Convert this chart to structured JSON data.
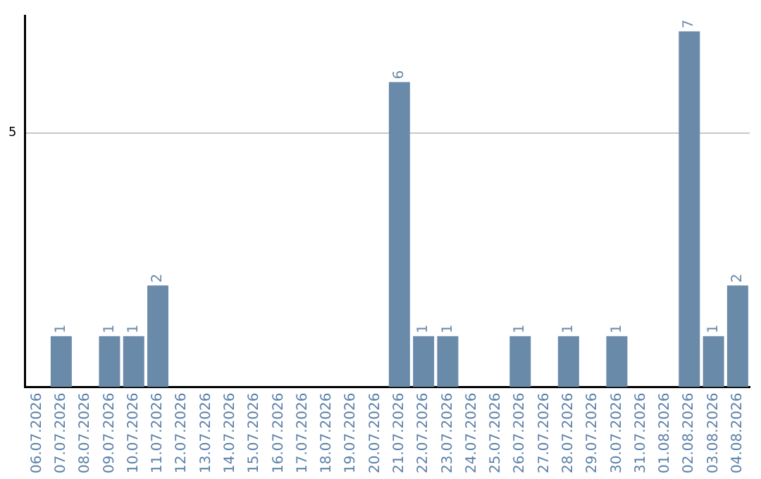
{
  "chart_data": {
    "type": "bar",
    "categories": [
      "06.07.2026",
      "07.07.2026",
      "08.07.2026",
      "09.07.2026",
      "10.07.2026",
      "11.07.2026",
      "12.07.2026",
      "13.07.2026",
      "14.07.2026",
      "15.07.2026",
      "16.07.2026",
      "17.07.2026",
      "18.07.2026",
      "19.07.2026",
      "20.07.2026",
      "21.07.2026",
      "22.07.2026",
      "23.07.2026",
      "24.07.2026",
      "25.07.2026",
      "26.07.2026",
      "27.07.2026",
      "28.07.2026",
      "29.07.2026",
      "30.07.2026",
      "31.07.2026",
      "01.08.2026",
      "02.08.2026",
      "03.08.2026",
      "04.08.2026"
    ],
    "values": [
      0,
      1,
      0,
      1,
      1,
      2,
      0,
      0,
      0,
      0,
      0,
      0,
      0,
      0,
      0,
      6,
      1,
      1,
      0,
      0,
      1,
      0,
      1,
      0,
      1,
      0,
      0,
      7,
      1,
      2
    ],
    "value_labels": [
      null,
      "1",
      null,
      "1",
      "1",
      "2",
      null,
      null,
      null,
      null,
      null,
      null,
      null,
      null,
      null,
      "6",
      "1",
      "1",
      null,
      null,
      "1",
      null,
      "1",
      null,
      "1",
      null,
      null,
      "7",
      "1",
      "2"
    ],
    "color": "#6a8aaa",
    "ylim": [
      0,
      7.3
    ],
    "yticks": [
      5
    ],
    "grid": "y"
  }
}
